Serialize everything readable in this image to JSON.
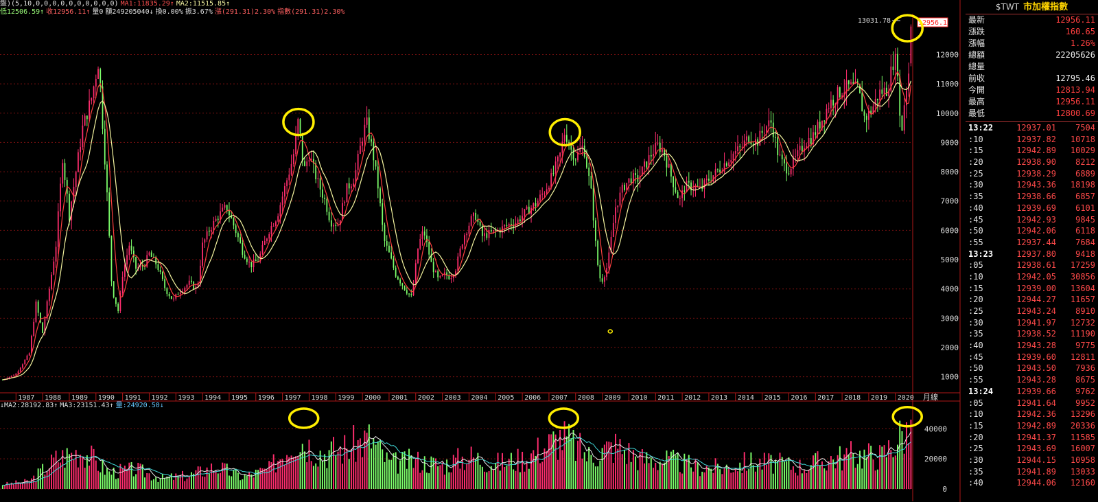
{
  "header": {
    "line1": [
      {
        "text": "盤)(5,10,0,0,0,0,0,0,0,0,0,0)",
        "color": "#e0e0e0"
      },
      {
        "text": "MA1:11835.29↑",
        "color": "#ff5050"
      },
      {
        "text": "MA2:11515.85↑",
        "color": "#f5f5a0"
      }
    ],
    "line2": [
      {
        "text": "低12506.59↑",
        "color": "#9cff7a"
      },
      {
        "text": "收12956.11↑",
        "color": "#ff6060"
      },
      {
        "text": "量0",
        "color": "#e0e0e0"
      },
      {
        "text": "額249205040↓",
        "color": "#e0e0e0"
      },
      {
        "text": "換0.00%",
        "color": "#e0e0e0"
      },
      {
        "text": "振3.67%",
        "color": "#e0e0e0"
      },
      {
        "text": "漲(291.31)2.30%",
        "color": "#ff6060"
      },
      {
        "text": "指數(291.31)2.30%",
        "color": "#ff6060"
      }
    ]
  },
  "volume_header": [
    {
      "text": "↓MA2:28192.83↑",
      "color": "#e0e0e0"
    },
    {
      "text": "MA3:23151.43↑",
      "color": "#e0e0e0"
    },
    {
      "text": "量:24920.50↓",
      "color": "#66c8ff"
    }
  ],
  "chart_data": [
    {
      "type": "candlestick",
      "period_label": "月線",
      "x_ticks": [
        "1987",
        "1988",
        "1989",
        "1990",
        "1991",
        "1992",
        "1993",
        "1994",
        "1995",
        "1996",
        "1997",
        "1998",
        "1999",
        "2000",
        "2001",
        "2002",
        "2003",
        "2004",
        "2005",
        "2006",
        "2007",
        "2008",
        "2009",
        "2010",
        "2011",
        "2012",
        "2013",
        "2014",
        "2015",
        "2016",
        "2017",
        "2018",
        "2019",
        "2020"
      ],
      "y_ticks": [
        1000,
        2000,
        3000,
        4000,
        5000,
        6000,
        7000,
        8000,
        9000,
        10000,
        11000,
        12000
      ],
      "ylim": [
        500,
        13300
      ],
      "xlim": [
        1986.4,
        2020.65
      ],
      "price_series": {
        "name": "price",
        "points": [
          [
            1986.5,
            900
          ],
          [
            1987.0,
            1100
          ],
          [
            1987.5,
            1800
          ],
          [
            1987.75,
            3500
          ],
          [
            1988.0,
            2500
          ],
          [
            1988.5,
            5500
          ],
          [
            1988.75,
            8500
          ],
          [
            1989.0,
            6500
          ],
          [
            1989.5,
            9500
          ],
          [
            1989.83,
            10500
          ],
          [
            1990.1,
            11800
          ],
          [
            1990.4,
            7500
          ],
          [
            1990.6,
            4000
          ],
          [
            1990.85,
            3200
          ],
          [
            1991.0,
            4500
          ],
          [
            1991.25,
            5500
          ],
          [
            1991.5,
            4700
          ],
          [
            1991.8,
            4800
          ],
          [
            1992.0,
            5200
          ],
          [
            1992.3,
            4800
          ],
          [
            1992.6,
            4000
          ],
          [
            1992.9,
            3600
          ],
          [
            1993.1,
            3900
          ],
          [
            1993.5,
            4200
          ],
          [
            1993.8,
            4000
          ],
          [
            1994.0,
            5500
          ],
          [
            1994.25,
            6000
          ],
          [
            1994.6,
            6500
          ],
          [
            1994.9,
            6800
          ],
          [
            1995.2,
            6100
          ],
          [
            1995.5,
            5300
          ],
          [
            1995.8,
            4800
          ],
          [
            1996.1,
            5000
          ],
          [
            1996.5,
            6000
          ],
          [
            1996.8,
            6500
          ],
          [
            1997.1,
            7500
          ],
          [
            1997.4,
            8500
          ],
          [
            1997.6,
            9800
          ],
          [
            1997.8,
            8000
          ],
          [
            1998.0,
            8600
          ],
          [
            1998.3,
            7700
          ],
          [
            1998.6,
            7000
          ],
          [
            1998.8,
            6300
          ],
          [
            1999.1,
            6200
          ],
          [
            1999.4,
            7400
          ],
          [
            1999.7,
            7800
          ],
          [
            2000.0,
            9200
          ],
          [
            2000.15,
            9700
          ],
          [
            2000.4,
            8600
          ],
          [
            2000.6,
            7400
          ],
          [
            2000.8,
            5700
          ],
          [
            2001.0,
            5200
          ],
          [
            2001.25,
            4500
          ],
          [
            2001.6,
            4000
          ],
          [
            2001.85,
            3700
          ],
          [
            2002.1,
            5500
          ],
          [
            2002.3,
            6000
          ],
          [
            2002.6,
            4800
          ],
          [
            2002.85,
            4300
          ],
          [
            2003.1,
            4500
          ],
          [
            2003.3,
            4400
          ],
          [
            2003.5,
            4700
          ],
          [
            2003.8,
            5800
          ],
          [
            2004.1,
            6400
          ],
          [
            2004.25,
            6500
          ],
          [
            2004.5,
            5800
          ],
          [
            2004.8,
            5900
          ],
          [
            2005.1,
            6000
          ],
          [
            2005.5,
            6200
          ],
          [
            2005.8,
            6300
          ],
          [
            2006.1,
            6600
          ],
          [
            2006.5,
            6900
          ],
          [
            2006.8,
            7300
          ],
          [
            2007.1,
            7800
          ],
          [
            2007.4,
            8500
          ],
          [
            2007.6,
            9400
          ],
          [
            2007.8,
            8800
          ],
          [
            2008.0,
            8500
          ],
          [
            2008.3,
            8900
          ],
          [
            2008.6,
            7200
          ],
          [
            2008.8,
            5000
          ],
          [
            2008.95,
            4200
          ],
          [
            2009.2,
            4800
          ],
          [
            2009.5,
            6800
          ],
          [
            2009.8,
            7500
          ],
          [
            2010.1,
            7800
          ],
          [
            2010.3,
            7700
          ],
          [
            2010.6,
            8200
          ],
          [
            2010.9,
            8700
          ],
          [
            2011.1,
            8900
          ],
          [
            2011.3,
            8700
          ],
          [
            2011.6,
            7800
          ],
          [
            2011.9,
            7000
          ],
          [
            2012.1,
            7500
          ],
          [
            2012.4,
            7500
          ],
          [
            2012.7,
            7400
          ],
          [
            2012.95,
            7700
          ],
          [
            2013.3,
            8000
          ],
          [
            2013.6,
            8300
          ],
          [
            2013.9,
            8600
          ],
          [
            2014.2,
            8800
          ],
          [
            2014.5,
            9200
          ],
          [
            2014.8,
            9000
          ],
          [
            2015.1,
            9500
          ],
          [
            2015.35,
            9700
          ],
          [
            2015.6,
            8600
          ],
          [
            2015.8,
            8200
          ],
          [
            2016.0,
            8100
          ],
          [
            2016.3,
            8500
          ],
          [
            2016.6,
            9000
          ],
          [
            2016.9,
            9200
          ],
          [
            2017.2,
            9700
          ],
          [
            2017.5,
            10300
          ],
          [
            2017.8,
            10600
          ],
          [
            2018.0,
            10800
          ],
          [
            2018.3,
            10900
          ],
          [
            2018.6,
            10800
          ],
          [
            2018.85,
            9800
          ],
          [
            2019.1,
            10100
          ],
          [
            2019.4,
            10700
          ],
          [
            2019.7,
            10800
          ],
          [
            2019.95,
            11900
          ],
          [
            2020.1,
            11500
          ],
          [
            2020.2,
            9000
          ],
          [
            2020.35,
            10500
          ],
          [
            2020.5,
            11400
          ],
          [
            2020.6,
            12956
          ]
        ],
        "peak_label": "13031.78",
        "last_label": "12956.1"
      },
      "ma_series": [
        {
          "name": "MA1",
          "color": "#ff4040",
          "window": 5
        },
        {
          "name": "MA2",
          "color": "#f5f5a0",
          "window": 10
        }
      ],
      "highlights": [
        {
          "x": 1997.6,
          "y": 9700
        },
        {
          "x": 2007.6,
          "y": 9350
        },
        {
          "x": 2020.45,
          "y": 12900
        }
      ],
      "marker": {
        "x": 2009.3,
        "y": 2550
      }
    },
    {
      "type": "volume_bar",
      "y_ticks": [
        0,
        20000,
        40000
      ],
      "ylim": [
        0,
        52000
      ],
      "volume_anchors": [
        [
          1986.5,
          3000
        ],
        [
          1987.5,
          5000
        ],
        [
          1988.5,
          20000
        ],
        [
          1989.5,
          26000
        ],
        [
          1990.0,
          18000
        ],
        [
          1990.5,
          11000
        ],
        [
          1991.5,
          13000
        ],
        [
          1992.5,
          7000
        ],
        [
          1993.5,
          9000
        ],
        [
          1994.5,
          15000
        ],
        [
          1995.5,
          8000
        ],
        [
          1996.5,
          13000
        ],
        [
          1997.5,
          35000
        ],
        [
          1998.5,
          24000
        ],
        [
          1999.5,
          28000
        ],
        [
          2000.3,
          34000
        ],
        [
          2001.0,
          17000
        ],
        [
          2002.0,
          19000
        ],
        [
          2003.0,
          16000
        ],
        [
          2004.0,
          22000
        ],
        [
          2005.0,
          17000
        ],
        [
          2006.0,
          20000
        ],
        [
          2007.5,
          35000
        ],
        [
          2008.5,
          22000
        ],
        [
          2009.5,
          29000
        ],
        [
          2010.5,
          20000
        ],
        [
          2011.5,
          19000
        ],
        [
          2012.5,
          15000
        ],
        [
          2013.5,
          14000
        ],
        [
          2014.5,
          18000
        ],
        [
          2015.5,
          17000
        ],
        [
          2016.5,
          15000
        ],
        [
          2017.5,
          20000
        ],
        [
          2018.5,
          23000
        ],
        [
          2019.5,
          22000
        ],
        [
          2020.3,
          38000
        ]
      ],
      "highlights": [
        {
          "x": 1997.8,
          "y": 47000
        },
        {
          "x": 2007.55,
          "y": 47000
        },
        {
          "x": 2020.45,
          "y": 48000
        }
      ]
    }
  ],
  "quote_panel": {
    "symbol": "$TWT",
    "name": "市加權指數",
    "stats": [
      {
        "label": "最新",
        "value": "12956.11",
        "color": "red"
      },
      {
        "label": "漲跌",
        "value": "160.65",
        "color": "red"
      },
      {
        "label": "漲幅",
        "value": "1.26%",
        "color": "red"
      },
      {
        "label": "總額",
        "value": "22205626",
        "color": "white"
      },
      {
        "label": "總量",
        "value": "",
        "color": "white"
      },
      {
        "label": "前收",
        "value": "12795.46",
        "color": "white"
      },
      {
        "label": "今開",
        "value": "12813.94",
        "color": "red"
      },
      {
        "label": "最高",
        "value": "12956.11",
        "color": "red"
      },
      {
        "label": "最低",
        "value": "12800.69",
        "color": "red"
      }
    ],
    "ticks": [
      {
        "time": "13:22",
        "price": "12937.01",
        "vol": "7504"
      },
      {
        "time": ":10",
        "price": "12937.82",
        "vol": "10718"
      },
      {
        "time": ":15",
        "price": "12942.89",
        "vol": "10029"
      },
      {
        "time": ":20",
        "price": "12938.90",
        "vol": "8212"
      },
      {
        "time": ":25",
        "price": "12938.29",
        "vol": "6889"
      },
      {
        "time": ":30",
        "price": "12943.36",
        "vol": "18198"
      },
      {
        "time": ":35",
        "price": "12938.66",
        "vol": "6857"
      },
      {
        "time": ":40",
        "price": "12939.69",
        "vol": "6101"
      },
      {
        "time": ":45",
        "price": "12942.93",
        "vol": "9845"
      },
      {
        "time": ":50",
        "price": "12942.06",
        "vol": "6118"
      },
      {
        "time": ":55",
        "price": "12937.44",
        "vol": "7684"
      },
      {
        "time": "13:23",
        "price": "12937.80",
        "vol": "9418"
      },
      {
        "time": ":05",
        "price": "12938.61",
        "vol": "17259"
      },
      {
        "time": ":10",
        "price": "12942.05",
        "vol": "30856"
      },
      {
        "time": ":15",
        "price": "12939.00",
        "vol": "13604"
      },
      {
        "time": ":20",
        "price": "12944.27",
        "vol": "11657"
      },
      {
        "time": ":25",
        "price": "12943.24",
        "vol": "8910"
      },
      {
        "time": ":30",
        "price": "12941.97",
        "vol": "12732"
      },
      {
        "time": ":35",
        "price": "12938.52",
        "vol": "11190"
      },
      {
        "time": ":40",
        "price": "12943.28",
        "vol": "9775"
      },
      {
        "time": ":45",
        "price": "12939.60",
        "vol": "12811"
      },
      {
        "time": ":50",
        "price": "12943.50",
        "vol": "7936"
      },
      {
        "time": ":55",
        "price": "12943.28",
        "vol": "8675"
      },
      {
        "time": "13:24",
        "price": "12939.66",
        "vol": "9762"
      },
      {
        "time": ":05",
        "price": "12941.64",
        "vol": "9952"
      },
      {
        "time": ":10",
        "price": "12942.36",
        "vol": "13296"
      },
      {
        "time": ":15",
        "price": "12942.89",
        "vol": "20336"
      },
      {
        "time": ":20",
        "price": "12941.37",
        "vol": "11585"
      },
      {
        "time": ":25",
        "price": "12943.69",
        "vol": "16007"
      },
      {
        "time": ":30",
        "price": "12944.15",
        "vol": "10958"
      },
      {
        "time": ":35",
        "price": "12941.89",
        "vol": "13033"
      },
      {
        "time": ":40",
        "price": "12944.06",
        "vol": "12160"
      }
    ]
  },
  "colors": {
    "up": "#ff2d6e",
    "down": "#7dff6b",
    "grid": "#7a1010",
    "axis": "#b01818",
    "highlight": "#ffee00",
    "ma1": "#ff4040",
    "ma2": "#f5f5a0",
    "vol_ma1": "#e8e8e8",
    "vol_ma2": "#40d8d8"
  }
}
